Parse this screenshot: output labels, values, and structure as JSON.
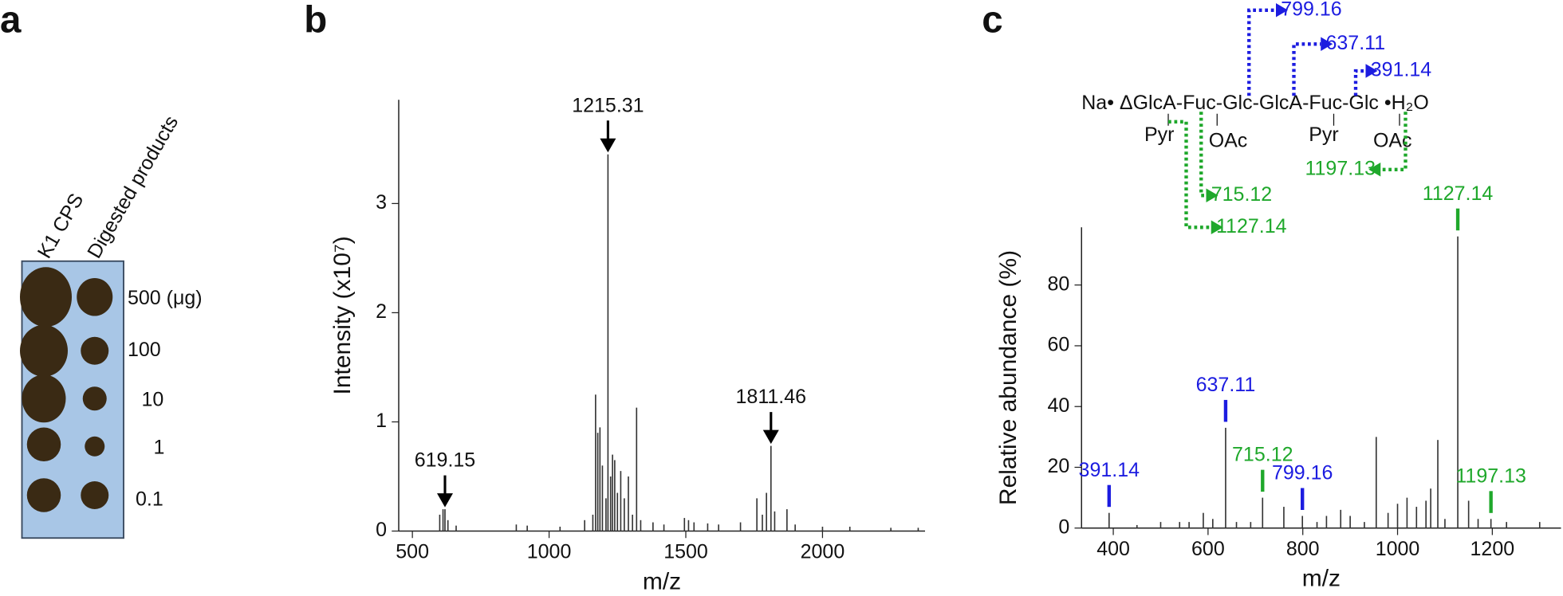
{
  "panel_labels": [
    "a",
    "b",
    "c"
  ],
  "dot_blot": {
    "columns": [
      "K1 CPS",
      "Digested products"
    ],
    "rows": [
      "500 (μg)",
      "100",
      "10",
      "1",
      "0.1"
    ]
  },
  "chart_data": [
    {
      "type": "spectrum",
      "x_label": "m/z",
      "y_label": "Intensity (x10⁷)",
      "color": "#333333",
      "xlim": [
        450,
        2375
      ],
      "xticks": [
        500,
        1000,
        1500,
        2000
      ],
      "ylim": [
        0,
        3.95
      ],
      "yticks": [
        0,
        1,
        2,
        3
      ],
      "x": [
        600,
        612,
        619.15,
        630,
        660,
        880,
        920,
        1040,
        1130,
        1160,
        1170,
        1178,
        1186,
        1195,
        1208,
        1215.31,
        1225,
        1232,
        1240,
        1250,
        1262,
        1275,
        1290,
        1305,
        1320,
        1335,
        1380,
        1420,
        1495,
        1510,
        1530,
        1580,
        1620,
        1700,
        1760,
        1780,
        1795,
        1811.46,
        1825,
        1870,
        1900,
        2000,
        2100,
        2250,
        2350
      ],
      "values": [
        0.15,
        0.2,
        0.2,
        0.1,
        0.05,
        0.06,
        0.05,
        0.04,
        0.1,
        0.15,
        1.25,
        0.9,
        0.95,
        0.6,
        0.3,
        3.45,
        0.5,
        0.7,
        0.65,
        0.35,
        0.55,
        0.3,
        0.5,
        0.15,
        1.13,
        0.1,
        0.08,
        0.06,
        0.12,
        0.1,
        0.08,
        0.07,
        0.06,
        0.08,
        0.3,
        0.15,
        0.35,
        0.78,
        0.18,
        0.2,
        0.06,
        0.04,
        0.04,
        0.03,
        0.03
      ],
      "annotations": [
        {
          "text": "619.15",
          "x": 619.15,
          "y": 0.2
        },
        {
          "text": "1215.31",
          "x": 1215.31,
          "y": 3.45
        },
        {
          "text": "1811.46",
          "x": 1811.46,
          "y": 0.78
        }
      ]
    },
    {
      "type": "spectrum",
      "x_label": "m/z",
      "y_label": "Relative abundance (%)",
      "color": "#333333",
      "xlim": [
        333,
        1345
      ],
      "xticks": [
        400,
        600,
        800,
        1000,
        1200
      ],
      "ylim": [
        0,
        99
      ],
      "yticks": [
        0,
        20,
        40,
        60,
        80
      ],
      "x": [
        391.14,
        450,
        500,
        540,
        560,
        590,
        610,
        637.11,
        660,
        690,
        715.12,
        760,
        799.16,
        830,
        850,
        880,
        900,
        930,
        955,
        980,
        1000,
        1020,
        1040,
        1060,
        1070,
        1085,
        1100,
        1127.14,
        1150,
        1170,
        1197.13,
        1230,
        1300
      ],
      "values": [
        5,
        1,
        2,
        2,
        2,
        5,
        3,
        33,
        2,
        2,
        10,
        7,
        4,
        2,
        4,
        6,
        4,
        2,
        30,
        5,
        8,
        10,
        7,
        9,
        13,
        29,
        3,
        96,
        9,
        3,
        3,
        2,
        2
      ],
      "annotations": [
        {
          "text": "391.14",
          "x": 391.14,
          "y": 5,
          "color": "#1c1ce0"
        },
        {
          "text": "637.11",
          "x": 637.11,
          "y": 33,
          "color": "#1c1ce0"
        },
        {
          "text": "715.12",
          "x": 715.12,
          "y": 10,
          "color": "#1fa82b"
        },
        {
          "text": "799.16",
          "x": 799.16,
          "y": 4,
          "color": "#1c1ce0"
        },
        {
          "text": "1127.14",
          "x": 1127.14,
          "y": 96,
          "color": "#1fa82b"
        },
        {
          "text": "1197.13",
          "x": 1197.13,
          "y": 3,
          "color": "#1fa82b"
        }
      ],
      "scheme": {
        "chain": "Na• ΔGlcA-Fuc-Glc-GlcA-Fuc-Glc •H₂O",
        "substituents": [
          "Pyr",
          "OAc",
          "Pyr",
          "OAc"
        ],
        "fragments": [
          {
            "text": "799.16",
            "color": "#1c1ce0"
          },
          {
            "text": "637.11",
            "color": "#1c1ce0"
          },
          {
            "text": "391.14",
            "color": "#1c1ce0"
          },
          {
            "text": "715.12",
            "color": "#1fa82b"
          },
          {
            "text": "1127.14",
            "color": "#1fa82b"
          },
          {
            "text": "1197.13",
            "color": "#1fa82b"
          }
        ]
      }
    }
  ]
}
